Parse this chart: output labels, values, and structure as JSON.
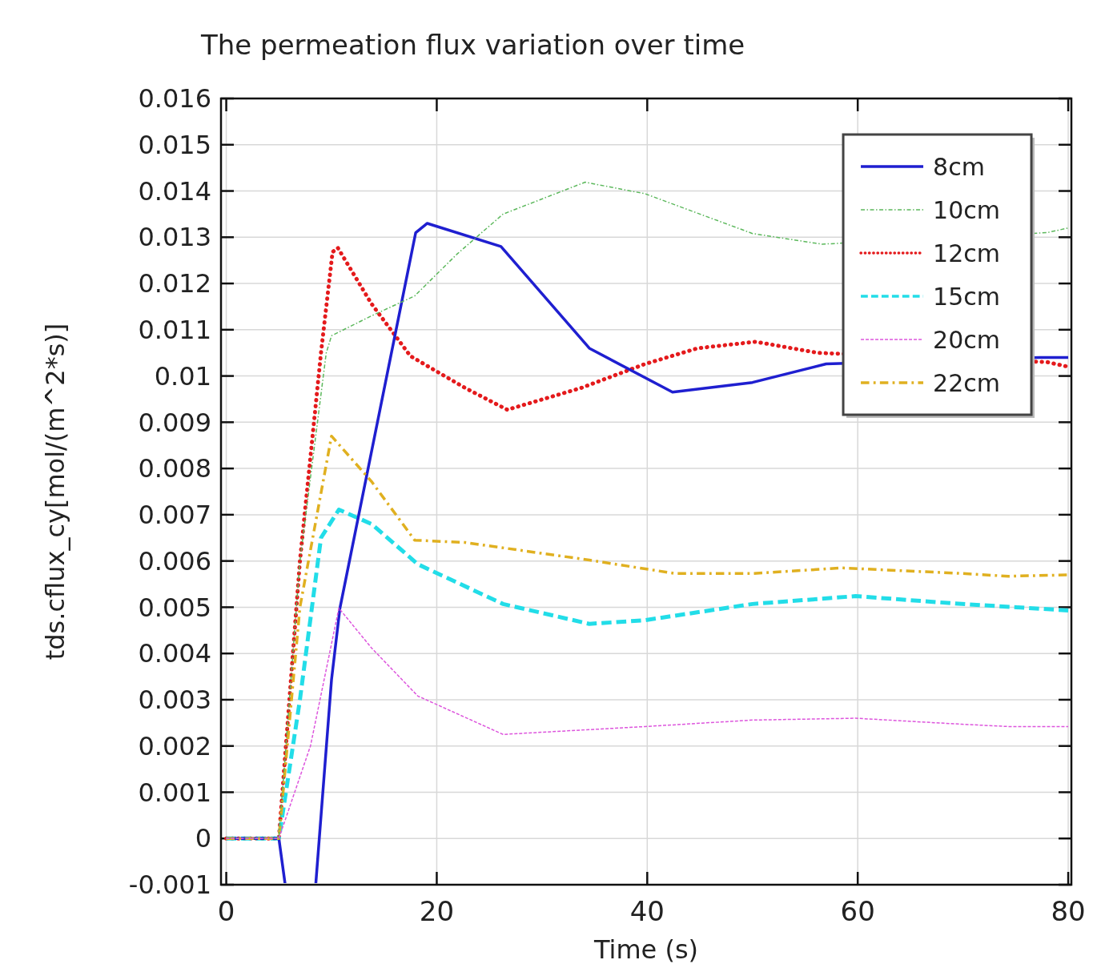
{
  "chart_data": {
    "type": "line",
    "title": "The permeation flux variation over time",
    "xlabel": "Time (s)",
    "ylabel": "tds.cflux_cy[mol/(m^2*s)]",
    "xlim": [
      -0.5,
      80.3
    ],
    "xticks": [
      0,
      20,
      40,
      60,
      80
    ],
    "ylim": [
      -0.001,
      0.016
    ],
    "yticks": [
      -0.001,
      0,
      0.001,
      0.002,
      0.003,
      0.004,
      0.005,
      0.006,
      0.007,
      0.008,
      0.009,
      0.01,
      0.011,
      0.012,
      0.013,
      0.014,
      0.015,
      0.016
    ],
    "grid": true,
    "legend": "top right",
    "series": [
      {
        "name": "8cm",
        "color": "#1f1fd0",
        "line_style": "solid",
        "x": [
          0,
          5,
          5.6,
          8.5,
          10,
          10.8,
          18,
          19.1,
          26.1,
          34.5,
          42.4,
          50,
          57,
          77.3,
          80
        ],
        "values": [
          0,
          0,
          -0.001,
          -0.001,
          0.00343,
          0.00498,
          0.0131,
          0.0133,
          0.0128,
          0.0106,
          0.00965,
          0.00986,
          0.01026,
          0.0104,
          0.0104
        ]
      },
      {
        "name": "10cm",
        "color": "#5cb85c",
        "line_style": "dashdot",
        "x": [
          0,
          5,
          7,
          9.5,
          10,
          13.8,
          17.9,
          21.9,
          26.3,
          34.1,
          39.8,
          50,
          56.6,
          78,
          80
        ],
        "values": [
          0,
          0,
          0.006,
          0.0105,
          0.01087,
          0.0113,
          0.01173,
          0.01263,
          0.0135,
          0.01419,
          0.01394,
          0.01308,
          0.01285,
          0.0131,
          0.0132
        ]
      },
      {
        "name": "12cm",
        "color": "#e41a1c",
        "line_style": "dotted",
        "x": [
          0,
          5,
          7,
          9,
          10.1,
          10.6,
          13.8,
          17.5,
          22.7,
          26.7,
          33.7,
          39.8,
          44.8,
          50.3,
          56.2,
          78,
          80
        ],
        "values": [
          0,
          0,
          0.006,
          0.0105,
          0.01268,
          0.01277,
          0.01156,
          0.01043,
          0.00974,
          0.00927,
          0.00974,
          0.01026,
          0.0106,
          0.01074,
          0.0105,
          0.0103,
          0.0102
        ]
      },
      {
        "name": "15cm",
        "color": "#22dde8",
        "line_style": "dashed",
        "x": [
          0,
          5,
          7,
          9,
          10.7,
          13.8,
          18.2,
          26.3,
          34.5,
          39.8,
          50,
          59.8,
          69.9,
          80
        ],
        "values": [
          0,
          0,
          0.003,
          0.0065,
          0.00711,
          0.0068,
          0.00593,
          0.00507,
          0.00464,
          0.00472,
          0.00507,
          0.00524,
          0.00507,
          0.00493
        ]
      },
      {
        "name": "20cm",
        "color": "#dd55dd",
        "line_style": "dashed",
        "x": [
          0,
          5,
          8,
          10.7,
          13.8,
          18.2,
          26.3,
          39.8,
          50,
          59.8,
          69.9,
          74.3,
          80
        ],
        "values": [
          0,
          0,
          0.002,
          0.00498,
          0.00412,
          0.00308,
          0.00225,
          0.00242,
          0.00256,
          0.0026,
          0.00247,
          0.00242,
          0.00242
        ]
      },
      {
        "name": "22cm",
        "color": "#e0b020",
        "line_style": "dashdot",
        "x": [
          0,
          5,
          7,
          10,
          13.8,
          17.9,
          22.7,
          34.5,
          42.6,
          50,
          58.5,
          69.9,
          74.3,
          80
        ],
        "values": [
          0,
          0,
          0.005,
          0.0087,
          0.00772,
          0.00645,
          0.0064,
          0.00602,
          0.00573,
          0.00573,
          0.00585,
          0.00573,
          0.00567,
          0.0057
        ]
      }
    ]
  }
}
